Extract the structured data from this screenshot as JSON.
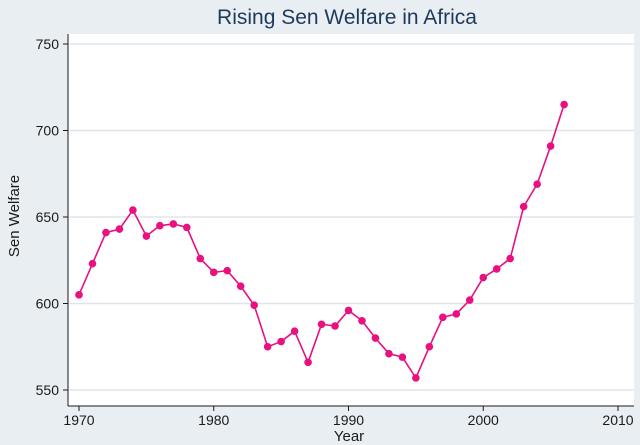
{
  "chart_data": {
    "type": "line",
    "title": "Rising Sen Welfare in Africa",
    "xlabel": "Year",
    "ylabel": "Sen Welfare",
    "xlim": [
      1970,
      2010
    ],
    "ylim": [
      550,
      750
    ],
    "x_ticks": [
      1970,
      1980,
      1990,
      2000,
      2010
    ],
    "y_ticks": [
      550,
      600,
      650,
      700,
      750
    ],
    "grid": true,
    "series": [
      {
        "color": "#e8117f",
        "x": [
          1970,
          1971,
          1972,
          1973,
          1974,
          1975,
          1976,
          1977,
          1978,
          1979,
          1980,
          1981,
          1982,
          1983,
          1984,
          1985,
          1986,
          1987,
          1988,
          1989,
          1990,
          1991,
          1992,
          1993,
          1994,
          1995,
          1996,
          1997,
          1998,
          1999,
          2000,
          2001,
          2002,
          2003,
          2004,
          2005,
          2006
        ],
        "y": [
          605,
          623,
          641,
          643,
          654,
          639,
          645,
          646,
          644,
          626,
          618,
          619,
          610,
          599,
          575,
          578,
          584,
          566,
          588,
          587,
          596,
          590,
          580,
          571,
          569,
          557,
          575,
          592,
          594,
          602,
          615,
          620,
          626,
          656,
          669,
          691,
          715
        ]
      }
    ]
  }
}
